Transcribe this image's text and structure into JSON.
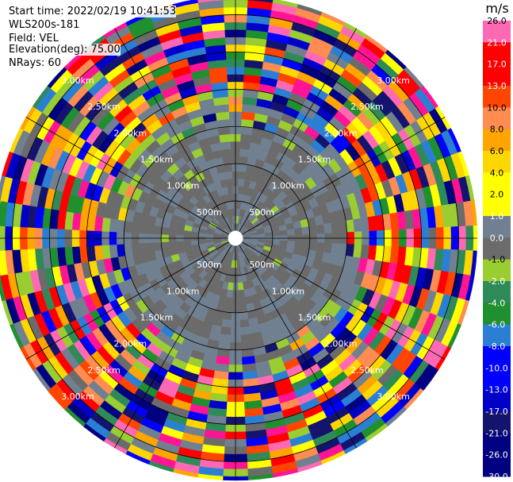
{
  "header": {
    "start_time": "Start time: 2022/02/19 10:41:53",
    "instrument": "WLS200s-181",
    "field": "Field: VEL",
    "elevation": "Elevation(deg): 75.00",
    "nrays": "NRays: 60"
  },
  "chart_data": {
    "type": "heatmap",
    "projection": "polar-ppi",
    "field": "VEL",
    "n_rays": 60,
    "elevation_deg": 75.0,
    "range_rings_m": [
      500,
      1000,
      1500,
      2000,
      2500,
      3000
    ],
    "range_ring_labels": [
      "500m",
      "1.00km",
      "1.50km",
      "2.00km",
      "2.50km",
      "3.00km"
    ],
    "max_range_m": 3250,
    "colorbar": {
      "unit": "m/s",
      "colors": [
        "#000080",
        "#14146e",
        "#0000c8",
        "#0000ff",
        "#2a7fd5",
        "#1f8f2f",
        "#2e8b57",
        "#9acd32",
        "#6b6b6b",
        "#708090",
        "#ffff00",
        "#ffd700",
        "#ffa500",
        "#ff8c50",
        "#ff4500",
        "#ff0000",
        "#ff1493",
        "#ff69b4"
      ],
      "tick_labels": [
        "26.0",
        "21.0",
        "17.0",
        "13.0",
        "10.0",
        "8.0",
        "6.0",
        "4.0",
        "2.0",
        "1.0",
        "0.0",
        "-1.0",
        "-2.0",
        "-4.0",
        "-6.0",
        "-8.0",
        "-10.0",
        "-13.0",
        "-17.0",
        "-21.0",
        "-26.0",
        "-30.0"
      ]
    },
    "note_gates": "Near-range gates (< ~1.45 km) are mostly -1.0 to 1.0 m/s (grey / slate); far-range gates are highly variable across the full scale."
  }
}
